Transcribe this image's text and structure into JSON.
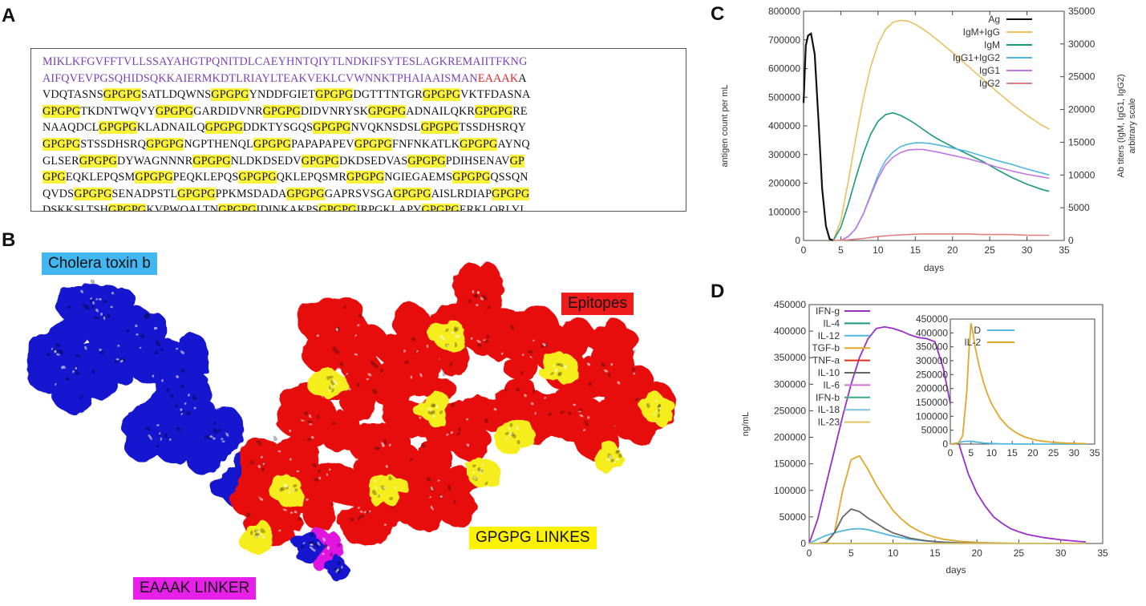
{
  "panels": {
    "a": "A",
    "b": "B",
    "c": "C",
    "d": "D"
  },
  "sequence": {
    "lines": [
      [
        {
          "t": "MIKLKFGVFFTVLLSSAYAHGTPQNITDLCAEYHNTQIYTLNDKIFSYTESLAGKREMAIITFKNG",
          "c": "p"
        }
      ],
      [
        {
          "t": "AIFQVEVPGSQHIDSQKKAIERMKDTLRIAYLTEAKVEKLCVWNNKTPHAIAAISMAN",
          "c": "p"
        },
        {
          "t": "EAAAK",
          "c": "r"
        },
        {
          "t": "A",
          "c": ""
        }
      ],
      [
        {
          "t": "VDQTASNS",
          "c": ""
        },
        {
          "t": "GPGPG",
          "c": "h"
        },
        {
          "t": "SATLDQWNS",
          "c": ""
        },
        {
          "t": "GPGPG",
          "c": "h"
        },
        {
          "t": "YNDDFGIET",
          "c": ""
        },
        {
          "t": "GPGPG",
          "c": "h"
        },
        {
          "t": "DGTTTNTGR",
          "c": ""
        },
        {
          "t": "GPGPG",
          "c": "h"
        },
        {
          "t": "VKTFDASNA",
          "c": ""
        }
      ],
      [
        {
          "t": "GPGPG",
          "c": "h"
        },
        {
          "t": "TKDNTWQVY",
          "c": ""
        },
        {
          "t": "GPGPG",
          "c": "h"
        },
        {
          "t": "GARDIDVNR",
          "c": ""
        },
        {
          "t": "GPGPG",
          "c": "h"
        },
        {
          "t": "DIDVNRYSK",
          "c": ""
        },
        {
          "t": "GPGPG",
          "c": "h"
        },
        {
          "t": "ADNAILQKR",
          "c": ""
        },
        {
          "t": "GPGPG",
          "c": "h"
        },
        {
          "t": "RE",
          "c": ""
        }
      ],
      [
        {
          "t": "NAAQDCL",
          "c": ""
        },
        {
          "t": "GPGPG",
          "c": "h"
        },
        {
          "t": "KLADNAILQ",
          "c": ""
        },
        {
          "t": "GPGPG",
          "c": "h"
        },
        {
          "t": "DDKTYSGQS",
          "c": ""
        },
        {
          "t": "GPGPG",
          "c": "h"
        },
        {
          "t": "NVQKNSDSL",
          "c": ""
        },
        {
          "t": "GPGPG",
          "c": "h"
        },
        {
          "t": "TSSDHSRQY",
          "c": ""
        }
      ],
      [
        {
          "t": "GPGPG",
          "c": "h"
        },
        {
          "t": "STSSDHSRQ",
          "c": ""
        },
        {
          "t": "GPGPG",
          "c": "h"
        },
        {
          "t": "NGPTHENQL",
          "c": ""
        },
        {
          "t": "GPGPG",
          "c": "h"
        },
        {
          "t": "PAPAPAPEV",
          "c": ""
        },
        {
          "t": "GPGPG",
          "c": "h"
        },
        {
          "t": "FNFNKATLK",
          "c": ""
        },
        {
          "t": "GPGPG",
          "c": "h"
        },
        {
          "t": "AYNQ",
          "c": ""
        }
      ],
      [
        {
          "t": "GLSER",
          "c": ""
        },
        {
          "t": "GPGPG",
          "c": "h"
        },
        {
          "t": "DYWAGNNNR",
          "c": ""
        },
        {
          "t": "GPGPG",
          "c": "h"
        },
        {
          "t": "NLDKDSEDV",
          "c": ""
        },
        {
          "t": "GPGPG",
          "c": "h"
        },
        {
          "t": "DKDSEDVAS",
          "c": ""
        },
        {
          "t": "GPGPG",
          "c": "h"
        },
        {
          "t": "PDIHSENAV",
          "c": ""
        },
        {
          "t": "GP",
          "c": "h"
        }
      ],
      [
        {
          "t": "GPG",
          "c": "h"
        },
        {
          "t": "EQKLEPQSM",
          "c": ""
        },
        {
          "t": "GPGPG",
          "c": "h"
        },
        {
          "t": "PEQKLEPQS",
          "c": ""
        },
        {
          "t": "GPGPG",
          "c": "h"
        },
        {
          "t": "QKLEPQSMR",
          "c": ""
        },
        {
          "t": "GPGPG",
          "c": "h"
        },
        {
          "t": "NGIEGAEMS",
          "c": ""
        },
        {
          "t": "GPGPG",
          "c": "h"
        },
        {
          "t": "QSSQN",
          "c": ""
        }
      ],
      [
        {
          "t": "QVDS",
          "c": ""
        },
        {
          "t": "GPGPG",
          "c": "h"
        },
        {
          "t": "SENADPSTL",
          "c": ""
        },
        {
          "t": "GPGPG",
          "c": "h"
        },
        {
          "t": "PPKMSDADA",
          "c": ""
        },
        {
          "t": "GPGPG",
          "c": "h"
        },
        {
          "t": "GAPRSVSGA",
          "c": ""
        },
        {
          "t": "GPGPG",
          "c": "h"
        },
        {
          "t": "AISLRDIAP",
          "c": ""
        },
        {
          "t": "GPGPG",
          "c": "h"
        }
      ],
      [
        {
          "t": "DSKKSLTSH",
          "c": ""
        },
        {
          "t": "GPGPG",
          "c": "h"
        },
        {
          "t": "KVPWQALTN",
          "c": ""
        },
        {
          "t": "GPGPG",
          "c": "h"
        },
        {
          "t": "IDINKAKPS",
          "c": ""
        },
        {
          "t": "GPGPG",
          "c": "h"
        },
        {
          "t": "IRPGKLAPY",
          "c": ""
        },
        {
          "t": "GPGPG",
          "c": "h"
        },
        {
          "t": "ERKLQRLYI",
          "c": ""
        }
      ]
    ]
  },
  "structure": {
    "labels": {
      "cholera": "Cholera toxin b",
      "epitopes": "Epitopes",
      "gpgpg": "GPGPG LINKES",
      "eaaak": "EAAAK LINKER"
    },
    "colors": {
      "cholera": "#1515d0",
      "epitopes": "#e80f0f",
      "gpgpg": "#f6ee1f",
      "eaaak": "#e014e0",
      "cholera_label_bg": "#41b6f0",
      "eaaak_label_bg": "#e81fe8",
      "gpgpg_label_bg": "#fff200",
      "epitopes_label_bg": "#ee1c1c"
    }
  },
  "chart_data": [
    {
      "type": "line",
      "xlabel": "days",
      "ylabel": "antigen count per mL",
      "y2label": "Ab titers (IgM, IgG1, IgG2) arbitrary scale",
      "xlim": [
        0,
        35
      ],
      "ylim": [
        0,
        800000
      ],
      "y2lim": [
        0,
        35000
      ],
      "xticks": [
        "0",
        "5",
        "10",
        "15",
        "20",
        "25",
        "30",
        "35"
      ],
      "yticks": [
        "0",
        "100000",
        "200000",
        "300000",
        "400000",
        "500000",
        "600000",
        "700000",
        "800000"
      ],
      "y2ticks": [
        "0",
        "5000",
        "10000",
        "15000",
        "20000",
        "25000",
        "30000",
        "35000"
      ],
      "legend_position": "top-right",
      "series": [
        {
          "name": "Ag",
          "axis": "left",
          "color": "#111111",
          "x": [
            0,
            0.3,
            0.6,
            1,
            1.5,
            2,
            2.5,
            3,
            3.5,
            4
          ],
          "y": [
            480000,
            680000,
            715000,
            722000,
            650000,
            420000,
            180000,
            50000,
            5000,
            0
          ]
        },
        {
          "name": "IgM+IgG",
          "axis": "right",
          "color": "#e8c060",
          "x": [
            4,
            5,
            6,
            7,
            8,
            9,
            10,
            11,
            12,
            13,
            14,
            15,
            16,
            17,
            18,
            20,
            22,
            24,
            26,
            28,
            30,
            32,
            33
          ],
          "y": [
            0,
            3000,
            9000,
            15500,
            21500,
            26500,
            30000,
            32200,
            33300,
            33600,
            33500,
            33000,
            32300,
            31500,
            30600,
            28700,
            26700,
            24700,
            22700,
            20800,
            19100,
            17600,
            17000
          ]
        },
        {
          "name": "IgM",
          "axis": "right",
          "color": "#1a9a78",
          "x": [
            4,
            5,
            6,
            7,
            8,
            9,
            10,
            11,
            12,
            13,
            14,
            15,
            16,
            17,
            18,
            20,
            22,
            24,
            26,
            28,
            30,
            32,
            33
          ],
          "y": [
            0,
            2000,
            5500,
            9500,
            13200,
            16200,
            18200,
            19200,
            19500,
            19100,
            18500,
            17800,
            17000,
            16200,
            15500,
            14300,
            13200,
            12100,
            10800,
            9600,
            8600,
            7800,
            7500
          ]
        },
        {
          "name": "IgG1+IgG2",
          "axis": "right",
          "color": "#4fb7e0",
          "x": [
            5,
            6,
            7,
            8,
            9,
            10,
            11,
            12,
            13,
            14,
            15,
            16,
            17,
            18,
            20,
            22,
            24,
            26,
            28,
            30,
            32,
            33
          ],
          "y": [
            0,
            600,
            1800,
            4000,
            7000,
            10000,
            12200,
            13500,
            14300,
            14700,
            14900,
            14900,
            14800,
            14600,
            14100,
            13600,
            12900,
            12200,
            11600,
            10900,
            10300,
            10000
          ]
        },
        {
          "name": "IgG1",
          "axis": "right",
          "color": "#c277e0",
          "x": [
            5,
            6,
            7,
            8,
            9,
            10,
            11,
            12,
            13,
            14,
            15,
            16,
            17,
            18,
            20,
            22,
            24,
            26,
            28,
            30,
            32,
            33
          ],
          "y": [
            0,
            600,
            1800,
            4000,
            6800,
            9500,
            11500,
            12700,
            13400,
            13800,
            13900,
            13900,
            13700,
            13500,
            13000,
            12500,
            11900,
            11200,
            10600,
            10100,
            9700,
            9500
          ]
        },
        {
          "name": "IgG2",
          "axis": "right",
          "color": "#e08080",
          "x": [
            4,
            6,
            8,
            10,
            12,
            14,
            16,
            18,
            20,
            22,
            24,
            26,
            28,
            30,
            32,
            33
          ],
          "y": [
            0,
            100,
            300,
            600,
            800,
            900,
            1000,
            1000,
            1000,
            1000,
            900,
            900,
            900,
            800,
            800,
            800
          ]
        }
      ]
    },
    {
      "type": "line",
      "xlabel": "days",
      "ylabel": "ng/mL",
      "xlim": [
        0,
        35
      ],
      "ylim": [
        0,
        450000
      ],
      "xticks": [
        "0",
        "5",
        "10",
        "15",
        "20",
        "25",
        "30",
        "35"
      ],
      "yticks": [
        "0",
        "50000",
        "100000",
        "150000",
        "200000",
        "250000",
        "300000",
        "350000",
        "400000",
        "450000"
      ],
      "legend_position": "top-left",
      "series": [
        {
          "name": "IFN-g",
          "color": "#9a2fc8",
          "x": [
            0,
            1,
            2,
            3,
            4,
            5,
            6,
            7,
            8,
            9,
            10,
            11,
            12,
            13,
            14,
            15,
            16,
            17,
            18,
            19,
            20,
            21,
            22,
            23,
            24,
            25,
            26,
            28,
            30,
            32,
            33
          ],
          "y": [
            0,
            45000,
            110000,
            175000,
            240000,
            300000,
            350000,
            385000,
            405000,
            408000,
            405000,
            400000,
            393000,
            388000,
            386000,
            380000,
            330000,
            250000,
            180000,
            130000,
            95000,
            70000,
            50000,
            38000,
            28000,
            22000,
            17000,
            11000,
            7000,
            4000,
            3000
          ]
        },
        {
          "name": "IL-4",
          "color": "#1a9a78",
          "x": [
            0,
            33
          ],
          "y": [
            0,
            0
          ]
        },
        {
          "name": "IL-12",
          "color": "#4fb7e0",
          "x": [
            0,
            1,
            2,
            3,
            4,
            5,
            6,
            7,
            8,
            9,
            10,
            12,
            14,
            16,
            18,
            20,
            25,
            33
          ],
          "y": [
            0,
            8000,
            15000,
            20000,
            24000,
            27000,
            28000,
            26000,
            22000,
            18000,
            14000,
            8000,
            4500,
            2500,
            1200,
            600,
            100,
            0
          ]
        },
        {
          "name": "TGF-b",
          "color": "#e0a828",
          "x": [
            0,
            1,
            2,
            3,
            4,
            5,
            6,
            7,
            8,
            9,
            10,
            11,
            12,
            13,
            14,
            15,
            16,
            18,
            20,
            22,
            25,
            33
          ],
          "y": [
            0,
            0,
            0,
            20000,
            100000,
            158000,
            165000,
            140000,
            110000,
            85000,
            62000,
            46000,
            33000,
            24000,
            17000,
            12000,
            8000,
            4000,
            2000,
            1000,
            300,
            0
          ]
        },
        {
          "name": "TNF-a",
          "color": "#e03020",
          "x": [
            0,
            33
          ],
          "y": [
            0,
            0
          ]
        },
        {
          "name": "IL-10",
          "color": "#666666",
          "x": [
            0,
            1,
            2,
            3,
            4,
            5,
            6,
            7,
            8,
            9,
            10,
            12,
            14,
            16,
            18,
            20,
            25,
            33
          ],
          "y": [
            0,
            0,
            2000,
            20000,
            50000,
            65000,
            60000,
            48000,
            38000,
            28000,
            20000,
            10000,
            5000,
            2200,
            1000,
            400,
            50,
            0
          ]
        },
        {
          "name": "IL-6",
          "color": "#d070d0",
          "x": [
            0,
            33
          ],
          "y": [
            0,
            0
          ]
        },
        {
          "name": "IFN-b",
          "color": "#3aaa8a",
          "x": [
            0,
            33
          ],
          "y": [
            0,
            0
          ]
        },
        {
          "name": "IL-18",
          "color": "#7ac0e0",
          "x": [
            0,
            33
          ],
          "y": [
            0,
            0
          ]
        },
        {
          "name": "IL-23",
          "color": "#e0c060",
          "x": [
            0,
            33
          ],
          "y": [
            0,
            0
          ]
        }
      ],
      "inset": {
        "xlim": [
          0,
          35
        ],
        "ylim": [
          0,
          450000
        ],
        "xticks": [
          "0",
          "5",
          "10",
          "15",
          "20",
          "25",
          "30",
          "35"
        ],
        "yticks": [
          "0",
          "50000",
          "100000",
          "150000",
          "200000",
          "250000",
          "300000",
          "350000",
          "400000",
          "450000"
        ],
        "series": [
          {
            "name": "D",
            "color": "#4fb7e0",
            "x": [
              0,
              1,
              2,
              3,
              4,
              5,
              6,
              7,
              8,
              10,
              12,
              15,
              20,
              25,
              33
            ],
            "y": [
              0,
              2000,
              5000,
              9000,
              10000,
              10000,
              8000,
              6000,
              4000,
              2000,
              800,
              300,
              50,
              0,
              0
            ]
          },
          {
            "name": "IL-2",
            "color": "#e0a828",
            "x": [
              0,
              1,
              2,
              3,
              4,
              4.5,
              5,
              5.5,
              6,
              7,
              8,
              9,
              10,
              12,
              14,
              16,
              18,
              20,
              22,
              25,
              28,
              30,
              33
            ],
            "y": [
              0,
              0,
              5000,
              30000,
              190000,
              330000,
              435000,
              400000,
              350000,
              280000,
              225000,
              180000,
              145000,
              95000,
              62000,
              40000,
              26000,
              17000,
              11000,
              6000,
              3500,
              2500,
              1500
            ]
          }
        ]
      }
    }
  ]
}
